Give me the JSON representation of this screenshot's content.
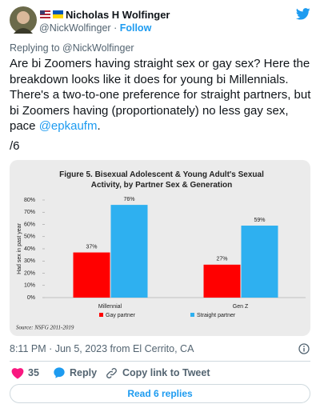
{
  "author": {
    "name": "Nicholas H Wolfinger",
    "handle": "@NickWolfinger",
    "separator": "·",
    "follow": "Follow"
  },
  "reply_to": "Replying to @NickWolfinger",
  "tweet": {
    "body": "Are bi Zoomers having straight sex or gay sex? Here the breakdown looks like it does for young bi Millennials. There's a two-to-one preference for straight partners, but bi Zoomers having (proportionately) no less gay sex, pace ",
    "mention": "@epkaufm",
    "end": ".",
    "thread_index": "/6"
  },
  "chart_data": {
    "type": "bar",
    "title": "Figure 5. Bisexual Adolescent & Young Adult's Sexual Activity, by Partner Sex & Generation",
    "ylabel": "Had sex in past year",
    "categories": [
      "Millennial",
      "Gen Z"
    ],
    "series": [
      {
        "name": "Gay partner",
        "color": "#ff0000",
        "values": [
          37,
          27
        ],
        "value_labels": [
          "37%",
          "27%"
        ]
      },
      {
        "name": "Straight partner",
        "color": "#2eb0f0",
        "values": [
          76,
          59
        ],
        "value_labels": [
          "76%",
          "59%"
        ]
      }
    ],
    "ylim": [
      0,
      80
    ],
    "yticks": [
      {
        "value": 0,
        "label": "0%"
      },
      {
        "value": 10,
        "label": "10%"
      },
      {
        "value": 20,
        "label": "20%"
      },
      {
        "value": 30,
        "label": "30%"
      },
      {
        "value": 40,
        "label": "40%"
      },
      {
        "value": 50,
        "label": "50%"
      },
      {
        "value": 60,
        "label": "60%"
      },
      {
        "value": 70,
        "label": "70%"
      },
      {
        "value": 80,
        "label": "80%"
      }
    ],
    "grid": false,
    "legend": "bottom",
    "source": "Source: NSFG 2011-2019"
  },
  "footer": {
    "timestamp": "8:11 PM · Jun 5, 2023 from El Cerrito, CA",
    "likes": 35,
    "reply": "Reply",
    "copy": "Copy link to Tweet",
    "read_replies": "Read 6 replies"
  }
}
